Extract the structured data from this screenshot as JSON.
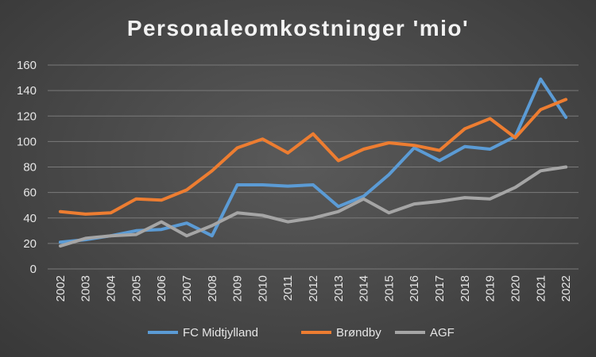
{
  "colors": {
    "FC Midtjylland": "#5b9bd5",
    "Brøndby": "#ed7d31",
    "AGF": "#a5a5a5"
  },
  "chart_data": {
    "type": "line",
    "title": "Personaleomkostninger 'mio'",
    "x": [
      "2002",
      "2003",
      "2004",
      "2005",
      "2006",
      "2007",
      "2008",
      "2009",
      "2010",
      "2011",
      "2012",
      "2013",
      "2014",
      "2015",
      "2016",
      "2017",
      "2018",
      "2019",
      "2020",
      "2021",
      "2022"
    ],
    "ylim": [
      0,
      160
    ],
    "yticks": [
      0,
      20,
      40,
      60,
      80,
      100,
      120,
      140,
      160
    ],
    "grid": true,
    "legend": "bottom",
    "series": [
      {
        "name": "FC Midtjylland",
        "values": [
          21,
          23,
          26,
          30,
          31,
          36,
          26,
          66,
          66,
          65,
          66,
          49,
          57,
          74,
          95,
          85,
          96,
          94,
          104,
          149,
          119
        ]
      },
      {
        "name": "Brøndby",
        "values": [
          45,
          43,
          44,
          55,
          54,
          62,
          77,
          95,
          102,
          91,
          106,
          85,
          94,
          99,
          97,
          93,
          110,
          118,
          103,
          125,
          133
        ]
      },
      {
        "name": "AGF",
        "values": [
          18,
          24,
          26,
          27,
          37,
          26,
          34,
          44,
          42,
          37,
          40,
          45,
          55,
          44,
          51,
          53,
          56,
          55,
          64,
          77,
          80
        ]
      }
    ]
  }
}
